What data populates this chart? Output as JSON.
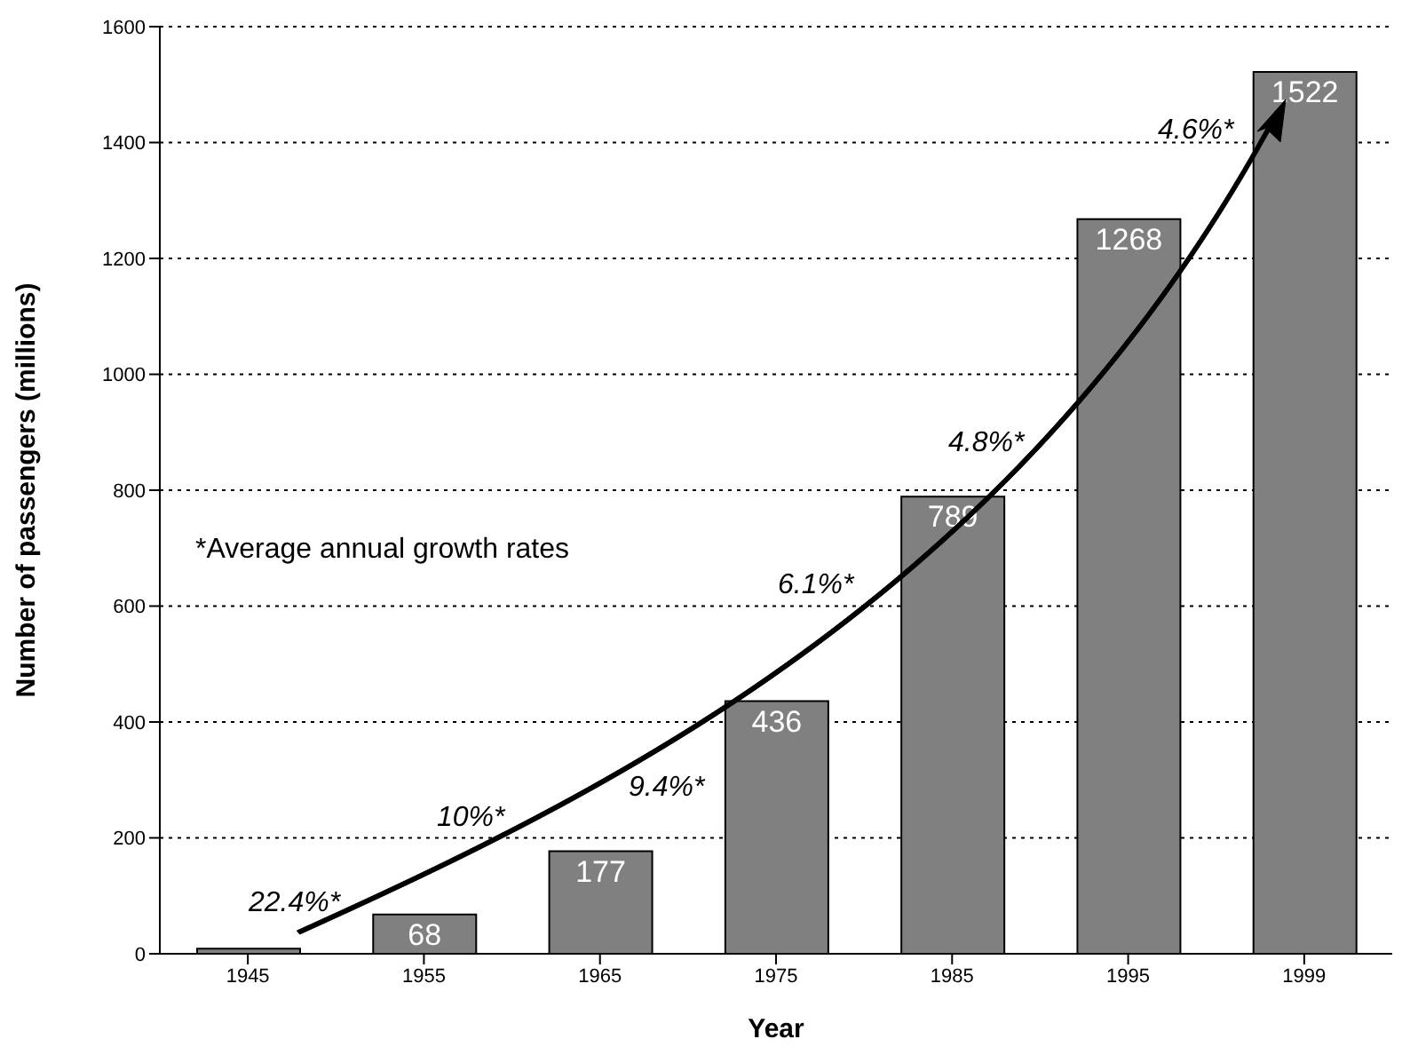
{
  "chart_data": {
    "type": "bar",
    "xlabel": "Year",
    "ylabel": "Number of passengers (millions)",
    "categories": [
      "1945",
      "1955",
      "1965",
      "1975",
      "1985",
      "1995",
      "1999"
    ],
    "values": [
      9,
      68,
      177,
      436,
      789,
      1268,
      1522
    ],
    "value_labels": [
      null,
      "68",
      "177",
      "436",
      "789",
      "1268",
      "1522"
    ],
    "color": "#808080",
    "ylim": [
      0,
      1600
    ],
    "yticks": [
      0,
      200,
      400,
      600,
      800,
      1000,
      1200,
      1400,
      1600
    ],
    "grid": "y",
    "annotations": [
      "*Average annual growth rates",
      "22.4%*",
      "10%*",
      "9.4%*",
      "6.1%*",
      "4.8%*",
      "4.6%*"
    ]
  }
}
